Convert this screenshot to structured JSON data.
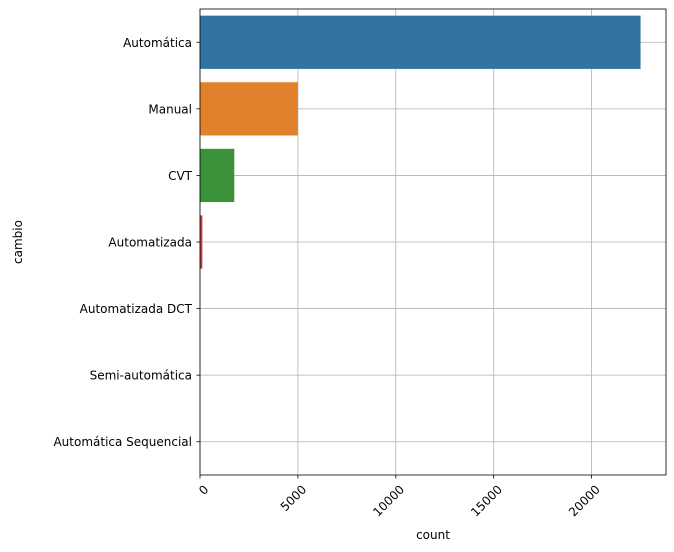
{
  "chart_data": {
    "type": "bar",
    "orientation": "horizontal",
    "title": "",
    "xlabel": "count",
    "ylabel": "cambio",
    "categories": [
      "Automática",
      "Manual",
      "CVT",
      "Automatizada",
      "Automatizada DCT",
      "Semi-automática",
      "Automática Sequencial"
    ],
    "values": [
      22500,
      5000,
      1750,
      120,
      4,
      3,
      2
    ],
    "colors": [
      "#3274a1",
      "#e1812c",
      "#3a923a",
      "#c03d3e",
      "#9372b2",
      "#845b53",
      "#d684bd"
    ],
    "xlim": [
      0,
      23800
    ],
    "xticks": [
      0,
      5000,
      10000,
      15000,
      20000
    ],
    "xtick_rotation": 45,
    "grid": true
  }
}
